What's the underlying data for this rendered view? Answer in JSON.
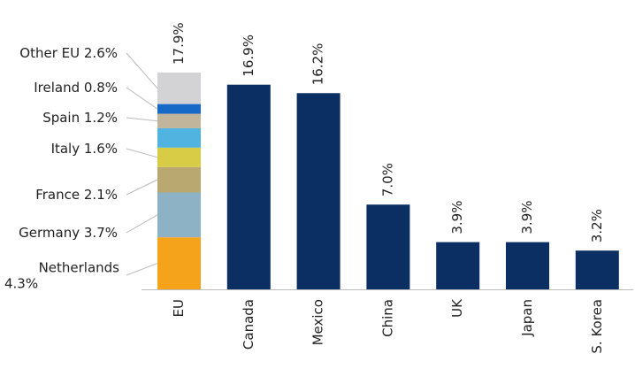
{
  "chart_data": {
    "type": "bar",
    "categories": [
      "EU",
      "Canada",
      "Mexico",
      "China",
      "UK",
      "Japan",
      "S. Korea"
    ],
    "values": [
      17.9,
      16.9,
      16.2,
      7.0,
      3.9,
      3.9,
      3.2
    ],
    "value_labels": [
      "17.9%",
      "16.9%",
      "16.2%",
      "7.0%",
      "3.9%",
      "3.9%",
      "3.2%"
    ],
    "color": "#0b2f62",
    "eu_breakdown": [
      {
        "name": "Netherlands",
        "value": 4.3,
        "value_label": "4.3%",
        "color": "#f6a31c"
      },
      {
        "name": "Germany",
        "value": 3.7,
        "value_label": "3.7%",
        "color": "#8db2c5"
      },
      {
        "name": "France",
        "value": 2.1,
        "value_label": "2.1%",
        "color": "#b9a86f"
      },
      {
        "name": "Italy",
        "value": 1.6,
        "value_label": "1.6%",
        "color": "#d8cc46"
      },
      {
        "name": null,
        "value": 1.6,
        "color": "#51b4e0"
      },
      {
        "name": "Spain",
        "value": 1.2,
        "value_label": "1.2%",
        "color": "#c1b59b"
      },
      {
        "name": "Ireland",
        "value": 0.8,
        "value_label": "0.8%",
        "color": "#1769c8"
      },
      {
        "name": "Other EU",
        "value": 2.6,
        "value_label": "2.6%",
        "color": "#d3d3d6"
      }
    ]
  }
}
